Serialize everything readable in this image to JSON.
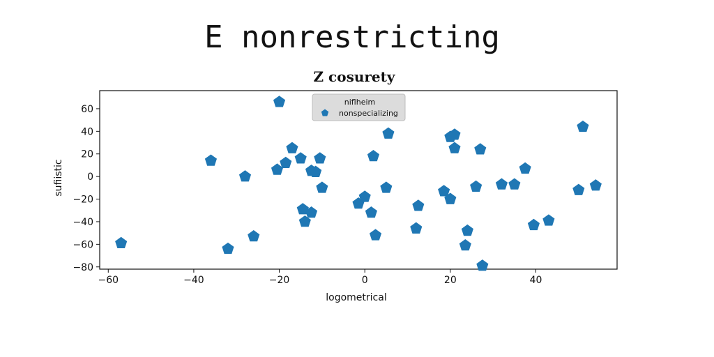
{
  "page": {
    "title": "E nonrestricting"
  },
  "chart_data": {
    "type": "scatter",
    "title": "Z cosurety",
    "xlabel": "logometrical",
    "ylabel": "sufiistic",
    "xlim": [
      -62,
      59
    ],
    "ylim": [
      -82,
      76
    ],
    "x_ticks": [
      -60,
      -40,
      -20,
      0,
      20,
      40
    ],
    "y_ticks": [
      60,
      40,
      20,
      0,
      -20,
      -40,
      -60,
      -80
    ],
    "x_tick_labels": [
      "−60",
      "−40",
      "−20",
      "0",
      "20",
      "40"
    ],
    "y_tick_labels": [
      "60",
      "40",
      "20",
      "0",
      "−20",
      "−40",
      "−60",
      "−80"
    ],
    "grid": false,
    "legend": {
      "title": "niflheim",
      "placement": "top-center"
    },
    "colors": {
      "marker": "#1f77b4",
      "legend_bg": "#dcdcdc"
    },
    "marker": "pentagon",
    "series": [
      {
        "name": "nonspecializing",
        "points": [
          [
            -57,
            -59
          ],
          [
            -36,
            14
          ],
          [
            -32,
            -64
          ],
          [
            -28,
            0
          ],
          [
            -26,
            -53
          ],
          [
            -20,
            66
          ],
          [
            -20.5,
            6
          ],
          [
            -18.5,
            12
          ],
          [
            -17,
            25
          ],
          [
            -15,
            16
          ],
          [
            -14.5,
            -29
          ],
          [
            -14,
            -40
          ],
          [
            -12.5,
            -32
          ],
          [
            -12.5,
            5
          ],
          [
            -11.5,
            4
          ],
          [
            -10.5,
            16
          ],
          [
            -10,
            -10
          ],
          [
            -1.5,
            -24
          ],
          [
            0,
            -18
          ],
          [
            1.5,
            -32
          ],
          [
            2,
            18
          ],
          [
            2.5,
            -52
          ],
          [
            5,
            -10
          ],
          [
            5.5,
            38
          ],
          [
            12,
            -46
          ],
          [
            12.5,
            -26
          ],
          [
            18.5,
            -13
          ],
          [
            20,
            -20
          ],
          [
            20,
            35
          ],
          [
            21,
            37
          ],
          [
            21,
            25
          ],
          [
            23.5,
            -61
          ],
          [
            24,
            -48
          ],
          [
            26,
            -9
          ],
          [
            27,
            24
          ],
          [
            27.5,
            -79
          ],
          [
            32,
            -7
          ],
          [
            35,
            -7
          ],
          [
            37.5,
            7
          ],
          [
            39.5,
            -43
          ],
          [
            43,
            -39
          ],
          [
            50,
            -12
          ],
          [
            51,
            44
          ],
          [
            54,
            -8
          ]
        ]
      }
    ]
  }
}
